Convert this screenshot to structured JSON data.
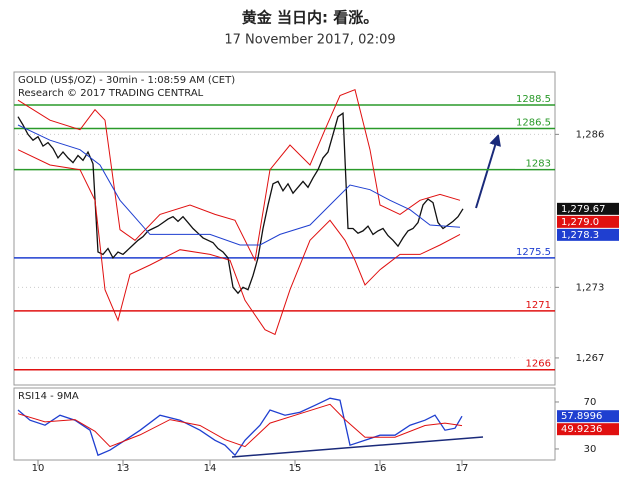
{
  "chart_data": [
    {
      "type": "line",
      "title": "黄金 当日内: 看涨。",
      "subtitle": "17 November 2017, 02:09",
      "info": [
        "GOLD (US$/OZ) - 30min - 1:08:59 AM (CET)",
        "Research © 2017 TRADING CENTRAL"
      ],
      "xlim": [
        -0.8,
        107.4
      ],
      "ylim": [
        1264.7,
        1291.3
      ],
      "yticks": [
        {
          "value": 1267,
          "label": "1,267"
        },
        {
          "value": 1273,
          "label": "1,273"
        },
        {
          "value": 1286,
          "label": "1,286"
        }
      ],
      "grid": true,
      "levels": [
        {
          "value": 1288.5,
          "color": "#2a9a2a"
        },
        {
          "value": 1286.5,
          "color": "#2a9a2a"
        },
        {
          "value": 1283,
          "color": "#2a9a2a"
        },
        {
          "value": 1275.5,
          "color": "#1f3fd0"
        },
        {
          "value": 1271,
          "color": "#e01010"
        },
        {
          "value": 1266,
          "color": "#e01010"
        }
      ],
      "series": [
        {
          "color": "#111111",
          "x": [
            0,
            1,
            2,
            3,
            4,
            5,
            6,
            7,
            8,
            9,
            10,
            11,
            12,
            13,
            14,
            15,
            16,
            17,
            18,
            19,
            20,
            21,
            22,
            23,
            24,
            25,
            26,
            27,
            28,
            29,
            30,
            31,
            32,
            33,
            34,
            35,
            36,
            37,
            38,
            39,
            40,
            41,
            42,
            43,
            44,
            45,
            46,
            47,
            48,
            49,
            50,
            51,
            52,
            53,
            54,
            55,
            56,
            57,
            58,
            59,
            60,
            61,
            62,
            63,
            64,
            65,
            66,
            67,
            68,
            69,
            70,
            71,
            72,
            73,
            74,
            75,
            76,
            77,
            78,
            79,
            80,
            81,
            82,
            83,
            84,
            85,
            86,
            87,
            88,
            89
          ],
          "values": [
            1287.5,
            1286.8,
            1286,
            1285.5,
            1285.8,
            1285,
            1285.3,
            1284.8,
            1284,
            1284.5,
            1284,
            1283.6,
            1284.2,
            1283.8,
            1284.5,
            1283.5,
            1276,
            1275.8,
            1276.3,
            1275.5,
            1276,
            1275.8,
            1276.2,
            1276.6,
            1277,
            1277.3,
            1277.8,
            1278,
            1278.2,
            1278.5,
            1278.8,
            1279,
            1278.6,
            1279,
            1278.5,
            1278,
            1277.6,
            1277.2,
            1277,
            1276.8,
            1276.3,
            1276,
            1275.5,
            1273,
            1272.5,
            1273,
            1272.8,
            1274,
            1275.5,
            1278,
            1280,
            1281.8,
            1282,
            1281.2,
            1281.8,
            1281,
            1281.5,
            1282,
            1281.5,
            1282.3,
            1283,
            1284,
            1284.5,
            1286,
            1287.5,
            1287.8,
            1278,
            1278,
            1277.6,
            1277.8,
            1278.2,
            1277.5,
            1277.8,
            1278,
            1277.4,
            1277,
            1276.5,
            1277.2,
            1277.8,
            1278,
            1278.5,
            1280,
            1280.5,
            1280.2,
            1278.5,
            1278,
            1278.3,
            1278.6,
            1279,
            1279.67
          ]
        },
        {
          "color": "#e01010",
          "x": [
            0,
            6.4,
            12.4,
            15.4,
            17.4,
            20.4,
            23.4,
            28.4,
            34.4,
            39.4,
            43.4,
            47.4,
            50.4,
            54.4,
            58.4,
            61.4,
            64.4,
            67.4,
            70.4,
            72.4,
            76.4,
            80.4,
            84.4,
            88.4
          ],
          "values": [
            1288.9,
            1287.2,
            1286.4,
            1288.1,
            1287.2,
            1277.9,
            1277,
            1279.2,
            1280,
            1279.2,
            1278.7,
            1275.3,
            1283,
            1285.1,
            1283.4,
            1286.4,
            1289.3,
            1289.8,
            1284.7,
            1280,
            1279.2,
            1280.4,
            1280.9,
            1280.4
          ]
        },
        {
          "color": "#e01010",
          "x": [
            0,
            6.4,
            12.4,
            15.4,
            17.4,
            20,
            22.4,
            26.4,
            32.4,
            38.4,
            42.4,
            45.4,
            49.4,
            51.4,
            54.4,
            58.4,
            62.4,
            65.4,
            67.4,
            69.4,
            72.4,
            76.4,
            80.4,
            84.4,
            88.4
          ],
          "values": [
            1284.7,
            1283.4,
            1283,
            1280.4,
            1272.8,
            1270.2,
            1274.1,
            1274.9,
            1276.2,
            1275.8,
            1275.3,
            1271.9,
            1269.4,
            1269,
            1272.8,
            1277,
            1278.7,
            1277,
            1275.3,
            1273.2,
            1274.5,
            1275.8,
            1275.8,
            1276.6,
            1277.5
          ]
        },
        {
          "color": "#1f3fd0",
          "x": [
            0,
            6.4,
            12.4,
            16.4,
            20.4,
            26.4,
            32.4,
            38.4,
            44.4,
            48.4,
            52.4,
            58.4,
            62.4,
            66.4,
            70.4,
            74.4,
            78.4,
            82.4,
            88.4
          ],
          "values": [
            1286.8,
            1285.5,
            1284.7,
            1283.4,
            1280.4,
            1277.5,
            1277.5,
            1277.5,
            1276.6,
            1276.6,
            1277.5,
            1278.3,
            1280,
            1281.7,
            1281.3,
            1280.4,
            1279.6,
            1278.3,
            1278.1
          ]
        }
      ],
      "price_tags": {
        "values": [
          1279.67,
          1279,
          1278.3
        ],
        "value_labels": [
          "1,279.67",
          "1,279.0",
          "1,278.3"
        ],
        "colors": [
          "#111111",
          "#e01010",
          "#1f3fd0"
        ]
      }
    },
    {
      "type": "line",
      "label": "RSI14 - 9MA",
      "xlim": [
        -0.8,
        107.4
      ],
      "xticks": [
        {
          "value": 4,
          "label": "10"
        },
        {
          "value": 21,
          "label": "13"
        },
        {
          "value": 38.4,
          "label": "14"
        },
        {
          "value": 55.4,
          "label": "15"
        },
        {
          "value": 72.4,
          "label": "16"
        },
        {
          "value": 88.8,
          "label": "17"
        }
      ],
      "ylim": [
        20.6,
        81.9
      ],
      "yticks": [
        30,
        70
      ],
      "series": [
        {
          "color": "#1f3fd0",
          "x": [
            0,
            2.4,
            5.4,
            8.4,
            11.4,
            14.4,
            16,
            18.4,
            21.4,
            24.4,
            28.4,
            32.4,
            36.4,
            39.4,
            41.4,
            43.4,
            45.4,
            48.4,
            50.4,
            53.4,
            56.4,
            59.4,
            62.4,
            64.4,
            66.4,
            69.4,
            72.4,
            75.4,
            78.4,
            81.4,
            83.4,
            85.4,
            87.4,
            88.8
          ],
          "values": [
            63.2,
            54.5,
            50.2,
            58.7,
            54.5,
            46,
            24.7,
            29,
            37.4,
            45.9,
            58.7,
            54.5,
            46,
            37.4,
            33.2,
            24.7,
            37.4,
            50.2,
            63.2,
            58.7,
            61.3,
            67.2,
            73.2,
            71.5,
            33.2,
            37.4,
            41.7,
            41.7,
            50.2,
            54.5,
            58.7,
            46,
            47.7,
            57.8996
          ]
        },
        {
          "color": "#e01010",
          "x": [
            0,
            5.4,
            11.4,
            15.4,
            18.4,
            24.4,
            30.4,
            36.4,
            41.4,
            45.4,
            50.4,
            56.4,
            62.4,
            65.4,
            69.4,
            75.4,
            81.4,
            85.4,
            88.8
          ],
          "values": [
            60,
            53,
            55,
            45,
            32,
            42,
            55,
            50,
            38,
            32,
            52,
            60,
            68,
            55,
            40,
            40,
            50,
            52,
            49.9236
          ]
        }
      ],
      "value_tags": {
        "values": [
          57.8996,
          49.9236
        ],
        "colors": [
          "#1f3fd0",
          "#e01010"
        ]
      }
    }
  ]
}
